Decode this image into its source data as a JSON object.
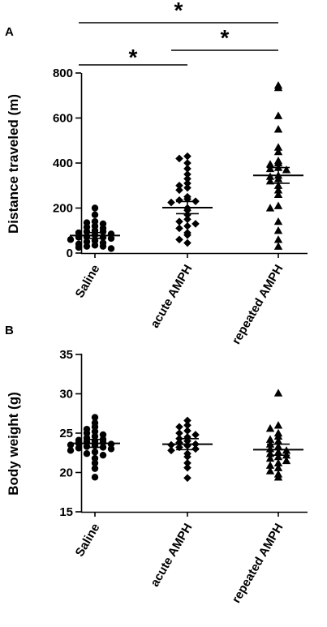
{
  "chart_data": [
    {
      "panel": "A",
      "type": "scatter",
      "ylabel": "Distance traveled (m)",
      "ylim": [
        0,
        800
      ],
      "yticks": [
        "0",
        "200",
        "400",
        "600",
        "800"
      ],
      "categories": [
        "Saline",
        "acute AMPH",
        "repeated AMPH"
      ],
      "markers": [
        "circle",
        "diamond",
        "triangle"
      ],
      "groups": [
        {
          "name": "Saline",
          "values": [
            200,
            170,
            140,
            135,
            130,
            120,
            115,
            110,
            100,
            95,
            95,
            90,
            85,
            80,
            75,
            70,
            70,
            65,
            60,
            55,
            50,
            45,
            40,
            35,
            30,
            30,
            25,
            20
          ],
          "mean": 78,
          "sem_low": 65,
          "sem_high": 91
        },
        {
          "name": "acute AMPH",
          "values": [
            430,
            420,
            400,
            375,
            350,
            330,
            310,
            300,
            290,
            280,
            250,
            240,
            235,
            230,
            225,
            200,
            190,
            170,
            150,
            140,
            130,
            120,
            110,
            90,
            80,
            60,
            45
          ],
          "mean": 202,
          "sem_low": 175,
          "sem_high": 229
        },
        {
          "name": "repeated AMPH",
          "values": [
            745,
            735,
            610,
            550,
            470,
            450,
            410,
            400,
            395,
            380,
            375,
            370,
            345,
            340,
            330,
            320,
            300,
            280,
            260,
            210,
            200,
            140,
            100,
            60,
            30
          ],
          "mean": 345,
          "sem_low": 310,
          "sem_high": 380
        }
      ],
      "significance": [
        {
          "from": "Saline",
          "to": "repeated AMPH",
          "label": "*"
        },
        {
          "from": "acute AMPH",
          "to": "repeated AMPH",
          "label": "*"
        },
        {
          "from": "Saline",
          "to": "acute AMPH",
          "label": "*"
        }
      ]
    },
    {
      "panel": "B",
      "type": "scatter",
      "ylabel": "Body weight (g)",
      "ylim": [
        15,
        35
      ],
      "yticks": [
        "15",
        "20",
        "25",
        "30",
        "35"
      ],
      "categories": [
        "Saline",
        "acute AMPH",
        "repeated AMPH"
      ],
      "markers": [
        "circle",
        "diamond",
        "triangle"
      ],
      "groups": [
        {
          "name": "Saline",
          "values": [
            27.0,
            26.3,
            25.8,
            25.5,
            25.2,
            25.0,
            24.8,
            24.6,
            24.4,
            24.2,
            24.1,
            24.0,
            23.9,
            23.8,
            23.7,
            23.6,
            23.5,
            23.4,
            23.3,
            23.2,
            23.1,
            23.0,
            22.8,
            22.6,
            22.4,
            22.2,
            21.8,
            21.2,
            20.5,
            19.4
          ],
          "mean": 23.7,
          "sem_low": 23.2,
          "sem_high": 24.2
        },
        {
          "name": "acute AMPH",
          "values": [
            26.6,
            26.0,
            25.8,
            25.3,
            25.0,
            24.8,
            24.5,
            24.3,
            24.0,
            23.8,
            23.6,
            23.5,
            23.4,
            23.2,
            23.0,
            22.8,
            22.4,
            22.0,
            21.2,
            20.6,
            19.3
          ],
          "mean": 23.6,
          "sem_low": 22.9,
          "sem_high": 24.3
        },
        {
          "name": "repeated AMPH",
          "values": [
            30.1,
            26.0,
            25.6,
            25.0,
            24.6,
            24.2,
            24.0,
            23.6,
            23.3,
            23.0,
            22.8,
            22.6,
            22.4,
            22.2,
            22.0,
            21.8,
            21.5,
            21.2,
            20.9,
            20.6,
            20.2,
            19.8,
            19.4
          ],
          "mean": 22.9,
          "sem_low": 22.2,
          "sem_high": 23.6
        }
      ],
      "significance": []
    }
  ]
}
